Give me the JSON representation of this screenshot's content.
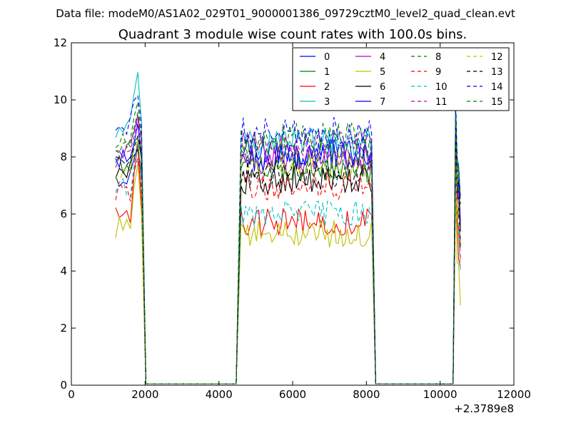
{
  "page": {
    "supertitle": "Data file: modeM0/AS1A02_029T01_9000001386_09729cztM0_level2_quad_clean.evt"
  },
  "chart_data": {
    "type": "line",
    "title": "Quadrant 3 module wise count rates with 100.0s bins.",
    "xlabel": "",
    "ylabel": "",
    "xlim": [
      0,
      12000
    ],
    "ylim": [
      0,
      12
    ],
    "x_offset_label": "+2.3789e8",
    "x_ticks": [
      0,
      2000,
      4000,
      6000,
      8000,
      10000,
      12000
    ],
    "x_tick_labels": [
      "0",
      "2000",
      "4000",
      "6000",
      "8000",
      "10000",
      "12000"
    ],
    "y_ticks": [
      0,
      2,
      4,
      6,
      8,
      10,
      12
    ],
    "y_tick_labels": [
      "0",
      "2",
      "4",
      "6",
      "8",
      "10",
      "12"
    ],
    "legend_position": "top-right",
    "legend_columns": 4,
    "segments": [
      {
        "start": 1200,
        "end": 1950,
        "drop_to": 2020
      },
      {
        "start": 4600,
        "end": 8150,
        "rise_from": 4470,
        "drop_to": 8250
      },
      {
        "start": 10420,
        "end": 10550,
        "rise_from": 10350
      }
    ],
    "zero_baseline": [
      2020,
      4470,
      8250,
      10350
    ],
    "series": [
      {
        "name": "0",
        "color": "#0000ff",
        "dash": "solid",
        "level_a": 7.2,
        "level_b": 8.2,
        "peak_a": 8.3,
        "level_c": 6.5
      },
      {
        "name": "1",
        "color": "#008000",
        "dash": "solid",
        "level_a": 7.8,
        "level_b": 7.6,
        "peak_a": 8.8,
        "level_c": 5.5
      },
      {
        "name": "2",
        "color": "#ff0000",
        "dash": "solid",
        "level_a": 6.0,
        "level_b": 5.7,
        "peak_a": 8.4,
        "level_c": 5.0
      },
      {
        "name": "3",
        "color": "#00bfbf",
        "dash": "solid",
        "level_a": 9.0,
        "level_b": 8.5,
        "peak_a": 11.0,
        "level_c": 7.5
      },
      {
        "name": "4",
        "color": "#bf00bf",
        "dash": "solid",
        "level_a": 8.3,
        "level_b": 7.9,
        "peak_a": 9.5,
        "level_c": 6.2
      },
      {
        "name": "5",
        "color": "#bfbf00",
        "dash": "solid",
        "level_a": 5.5,
        "level_b": 5.3,
        "peak_a": 8.0,
        "level_c": 4.2
      },
      {
        "name": "6",
        "color": "#000000",
        "dash": "solid",
        "level_a": 7.6,
        "level_b": 7.2,
        "peak_a": 8.2,
        "level_c": 6.0
      },
      {
        "name": "7",
        "color": "#0000ff",
        "dash": "solid",
        "level_a": 8.0,
        "level_b": 8.0,
        "peak_a": 9.0,
        "level_c": 6.8
      },
      {
        "name": "8",
        "color": "#008000",
        "dash": "dashed",
        "level_a": 8.6,
        "level_b": 8.7,
        "peak_a": 9.9,
        "level_c": 7.0
      },
      {
        "name": "9",
        "color": "#ff0000",
        "dash": "dashed",
        "level_a": 6.8,
        "level_b": 7.0,
        "peak_a": 8.0,
        "level_c": 5.6
      },
      {
        "name": "10",
        "color": "#00bfbf",
        "dash": "dashed",
        "level_a": 7.0,
        "level_b": 6.0,
        "peak_a": 8.5,
        "level_c": 5.2
      },
      {
        "name": "11",
        "color": "#bf00bf",
        "dash": "dashed",
        "level_a": 8.0,
        "level_b": 8.4,
        "peak_a": 9.2,
        "level_c": 6.4
      },
      {
        "name": "12",
        "color": "#bfbf00",
        "dash": "dashed",
        "level_a": 7.4,
        "level_b": 7.7,
        "peak_a": 8.6,
        "level_c": 5.8
      },
      {
        "name": "13",
        "color": "#000000",
        "dash": "dashed",
        "level_a": 7.9,
        "level_b": 7.4,
        "peak_a": 8.7,
        "level_c": 6.1
      },
      {
        "name": "14",
        "color": "#0000ff",
        "dash": "dashed",
        "level_a": 9.2,
        "level_b": 8.9,
        "peak_a": 10.3,
        "level_c": 7.8
      },
      {
        "name": "15",
        "color": "#008000",
        "dash": "dashed",
        "level_a": 8.4,
        "level_b": 8.3,
        "peak_a": 9.6,
        "level_c": 6.9
      }
    ]
  }
}
